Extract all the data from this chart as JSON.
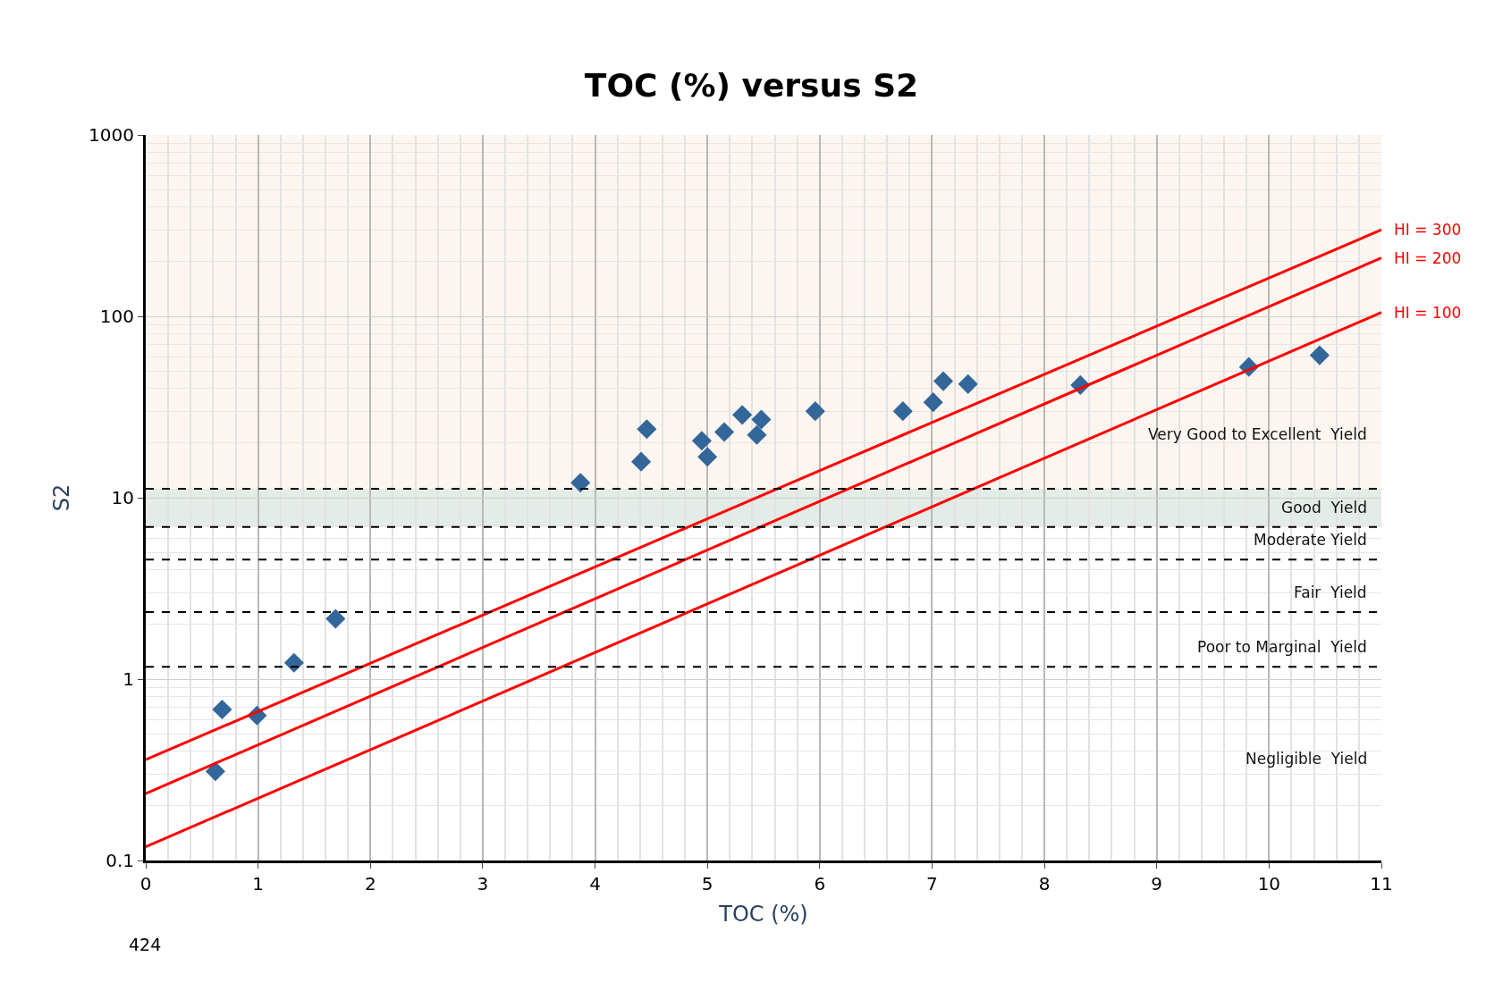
{
  "chart_data": {
    "type": "scatter",
    "title": "TOC (%) versus S2",
    "xlabel": "TOC (%)",
    "ylabel": "S2",
    "log": "y",
    "grid": true,
    "legend": false,
    "marker": "diamond",
    "xlim": [
      0,
      11
    ],
    "xticks": [
      0,
      1,
      2,
      3,
      4,
      5,
      6,
      7,
      8,
      9,
      10,
      11
    ],
    "ylim": [
      0.1,
      1000
    ],
    "yticks": [
      0.1,
      1,
      10,
      100,
      1000
    ],
    "series": [
      {
        "color": "#336699",
        "x": [
          0.62,
          0.68,
          0.99,
          1.32,
          1.69,
          3.87,
          4.41,
          4.46,
          4.95,
          5.0,
          5.15,
          5.31,
          5.44,
          5.48,
          5.96,
          6.74,
          7.01,
          7.1,
          7.32,
          8.32,
          9.82,
          10.45
        ],
        "values": [
          0.31,
          0.68,
          0.63,
          1.23,
          2.15,
          12.1,
          15.8,
          23.9,
          20.6,
          16.8,
          23,
          28.6,
          22.2,
          27,
          30,
          30,
          33.6,
          43.9,
          42.3,
          41.8,
          52.6,
          61
        ]
      },
      {
        "type": "line",
        "name": "HI = 300",
        "color": "#ff0000",
        "marker": "none",
        "line_style": "solid",
        "x": [
          0,
          11
        ],
        "values": [
          0.36,
          300
        ]
      },
      {
        "type": "line",
        "name": "HI = 200",
        "color": "#ff0000",
        "marker": "none",
        "line_style": "solid",
        "x": [
          0,
          11
        ],
        "values": [
          0.234,
          210
        ]
      },
      {
        "type": "line",
        "name": "HI = 100",
        "color": "#ff0000",
        "marker": "none",
        "line_style": "solid",
        "x": [
          0,
          11
        ],
        "values": [
          0.119,
          105
        ]
      }
    ],
    "ref_lines": [
      {
        "axis": "y",
        "value": 11.2,
        "color": "#000000",
        "line_style": "dashed"
      },
      {
        "axis": "y",
        "value": 6.9,
        "color": "#000000",
        "line_style": "dashed"
      },
      {
        "axis": "y",
        "value": 4.56,
        "color": "#000000",
        "line_style": "dashed",
        "label": "Moderate Yield"
      },
      {
        "axis": "y",
        "value": 2.34,
        "color": "#000000",
        "line_style": "dashed",
        "label": "Fair  Yield"
      },
      {
        "axis": "y",
        "value": 1.17,
        "color": "#000000",
        "line_style": "dashed",
        "label": "Poor to Marginal  Yield"
      }
    ],
    "bands": [
      {
        "axis": "y",
        "from": 11.2,
        "to": 1000,
        "label": "Very Good to Excellent  Yield",
        "color": "#fdf6f0"
      },
      {
        "axis": "y",
        "from": 6.9,
        "to": 11.2,
        "label": "Good  Yield",
        "color": "#e3ece6"
      }
    ],
    "annotations": [
      "424",
      "Negligible  Yield"
    ]
  }
}
